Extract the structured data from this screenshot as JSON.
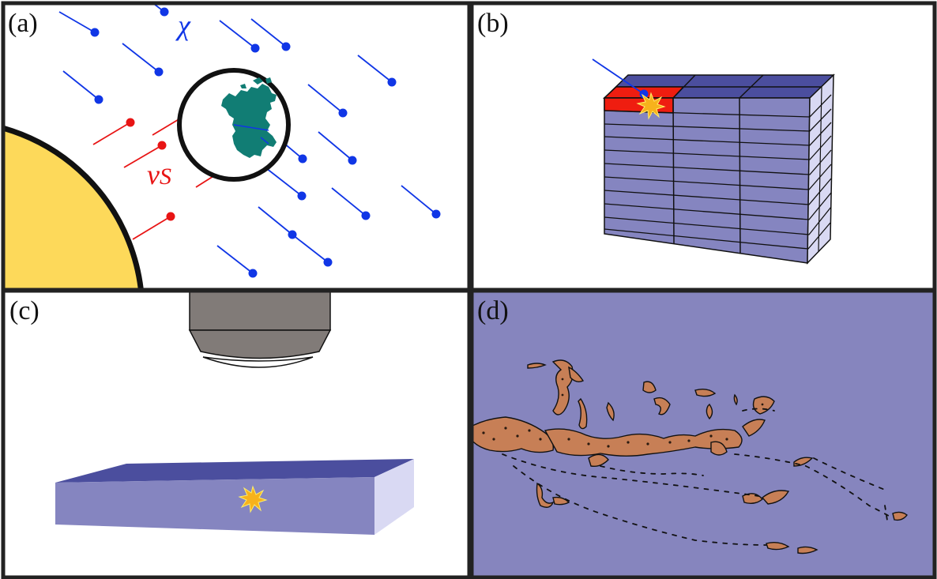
{
  "panels": {
    "a": {
      "label": "(a)",
      "dark_matter_symbol": "χ",
      "neutrino_symbol": "ν",
      "neutrino_subscript": "S"
    },
    "b": {
      "label": "(b)"
    },
    "c": {
      "label": "(c)"
    },
    "d": {
      "label": "(d)"
    }
  },
  "colors": {
    "dark_matter": "#1036e6",
    "neutrino": "#e81414",
    "sun": "#fdd95a",
    "earth_land": "#117d74",
    "detector_front": "#8585c0",
    "detector_top": "#4b4e9e",
    "detector_side": "#d9d9f3",
    "hit_module": "#ef1d10",
    "interaction_flash": "#f7b21c",
    "objective_lens": "#817b78",
    "track_fill": "#c77f56",
    "panel_d_background": "#8685be"
  },
  "icons": {
    "sun": "sun-icon",
    "earth": "earth-icon",
    "detector": "detector-array-icon",
    "flash": "interaction-flash-icon",
    "microscope": "microscope-objective-icon",
    "crystal": "crystal-slab-icon"
  }
}
